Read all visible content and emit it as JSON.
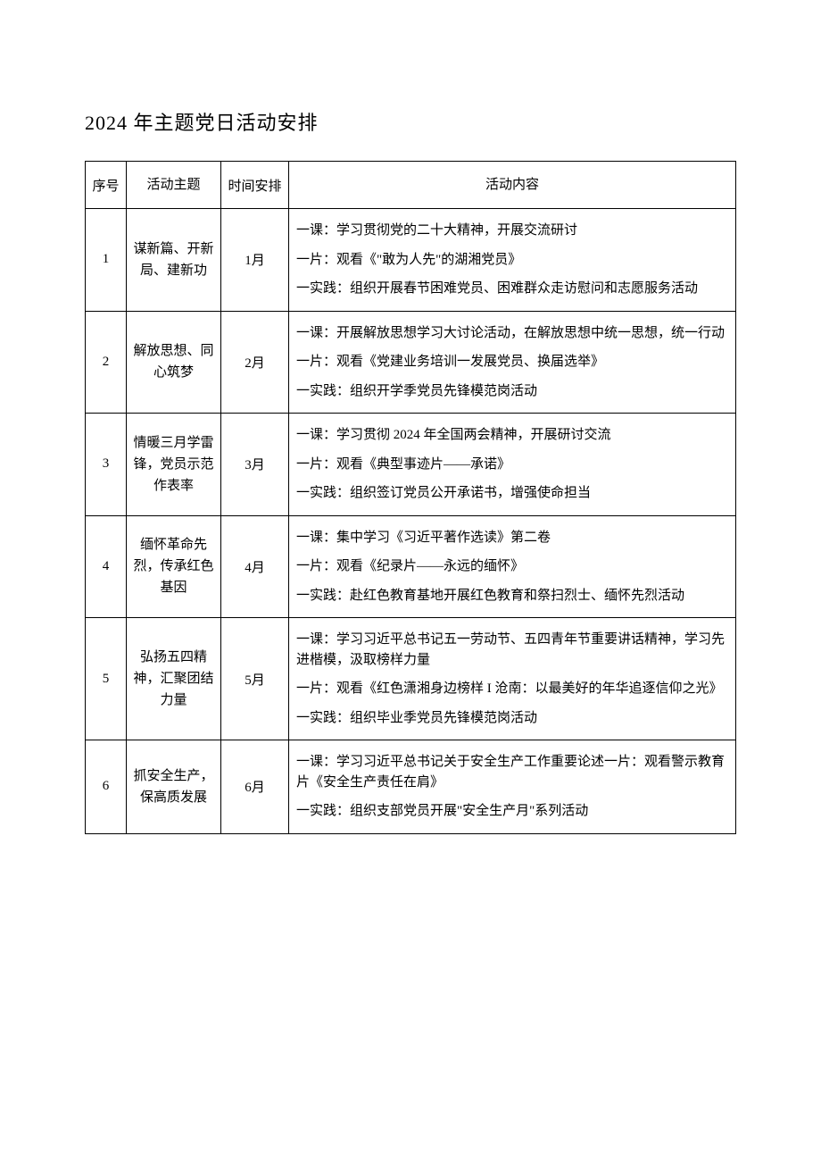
{
  "title": "2024 年主题党日活动安排",
  "columns": {
    "num": "序号",
    "theme": "活动主题",
    "time": "时间安排",
    "content": "活动内容"
  },
  "rows": [
    {
      "num": "1",
      "theme": "谋新篇、开新局、建新功",
      "time": "1月",
      "content_lines": [
        "一课：学习贯彻党的二十大精神，开展交流研讨",
        "一片：观看《\"敢为人先\"的湖湘党员》",
        "一实践：组织开展春节困难党员、困难群众走访慰问和志愿服务活动"
      ]
    },
    {
      "num": "2",
      "theme": "解放思想、同心筑梦",
      "time": "2月",
      "content_lines": [
        "一课：开展解放思想学习大讨论活动，在解放思想中统一思想，统一行动",
        "一片：观看《党建业务培训一发展党员、换届选举》",
        "一实践：组织开学季党员先锋模范岗活动"
      ]
    },
    {
      "num": "3",
      "theme": "情暖三月学雷锋，党员示范作表率",
      "time": "3月",
      "content_lines": [
        "一课：学习贯彻 2024 年全国两会精神，开展研讨交流",
        "一片：观看《典型事迹片——承诺》",
        "一实践：组织签订党员公开承诺书，增强使命担当"
      ]
    },
    {
      "num": "4",
      "theme": "缅怀革命先烈，传承红色基因",
      "time": "4月",
      "content_lines": [
        "一课：集中学习《习近平著作选读》第二卷",
        "一片：观看《纪录片——永远的缅怀》",
        "一实践：赴红色教育基地开展红色教育和祭扫烈士、缅怀先烈活动"
      ]
    },
    {
      "num": "5",
      "theme": "弘扬五四精神，汇聚团结力量",
      "time": "5月",
      "content_lines": [
        "一课：学习习近平总书记五一劳动节、五四青年节重要讲话精神，学习先进楷模，汲取榜样力量",
        "一片：观看《红色潇湘身边榜样 I 沧南：以最美好的年华追逐信仰之光》",
        "一实践：组织毕业季党员先锋模范岗活动"
      ]
    },
    {
      "num": "6",
      "theme": "抓安全生产，保高质发展",
      "time": "6月",
      "content_lines": [
        "一课：学习习近平总书记关于安全生产工作重要论述一片：观看警示教育片《安全生产责任在肩》",
        "一实践：组织支部党员开展\"安全生产月\"系列活动"
      ]
    }
  ]
}
